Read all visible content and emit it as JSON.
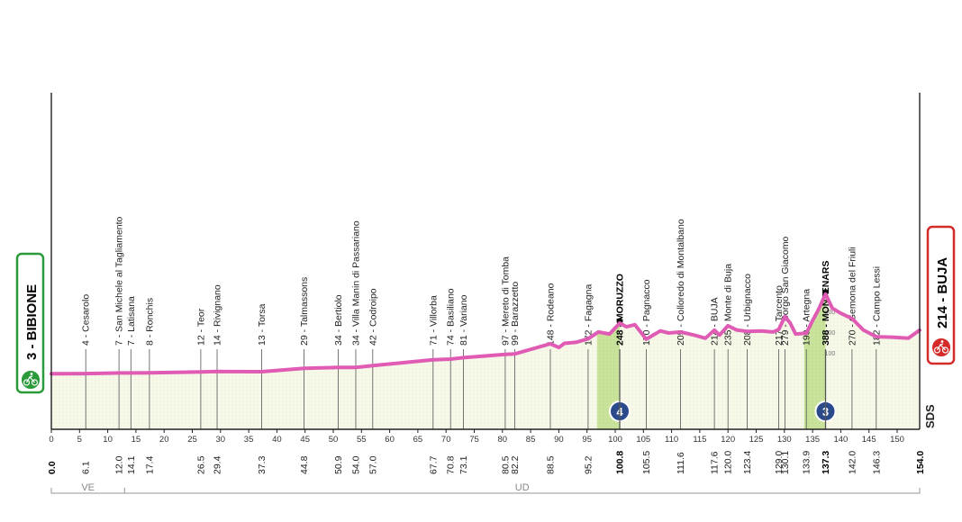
{
  "chart_data": {
    "type": "area",
    "title": "",
    "xlabel": "",
    "ylabel": "",
    "xlim": [
      0,
      154
    ],
    "x_ticks": [
      0,
      5,
      10,
      15,
      20,
      25,
      30,
      35,
      40,
      45,
      50,
      55,
      60,
      65,
      70,
      75,
      80,
      85,
      90,
      95,
      100,
      105,
      110,
      115,
      120,
      125,
      130,
      135,
      140,
      145,
      150
    ],
    "start": {
      "label": "3 - BIBIONE",
      "km": "0.0",
      "altitude_m": 3
    },
    "finish": {
      "label": "214 - BUJA",
      "km": "154.0",
      "altitude_m": 214
    },
    "profile": [
      {
        "km": 0,
        "alt": 3
      },
      {
        "km": 6.1,
        "alt": 4
      },
      {
        "km": 12.0,
        "alt": 7
      },
      {
        "km": 14.1,
        "alt": 7
      },
      {
        "km": 17.4,
        "alt": 8
      },
      {
        "km": 26.5,
        "alt": 12
      },
      {
        "km": 29.4,
        "alt": 14
      },
      {
        "km": 37.3,
        "alt": 13
      },
      {
        "km": 44.8,
        "alt": 29
      },
      {
        "km": 50.9,
        "alt": 34
      },
      {
        "km": 54.0,
        "alt": 34
      },
      {
        "km": 57.0,
        "alt": 42
      },
      {
        "km": 67.7,
        "alt": 71
      },
      {
        "km": 70.8,
        "alt": 74
      },
      {
        "km": 73.1,
        "alt": 81
      },
      {
        "km": 80.5,
        "alt": 97
      },
      {
        "km": 82.2,
        "alt": 99
      },
      {
        "km": 88.5,
        "alt": 148
      },
      {
        "km": 90,
        "alt": 130
      },
      {
        "km": 91,
        "alt": 150
      },
      {
        "km": 93,
        "alt": 155
      },
      {
        "km": 95.2,
        "alt": 172
      },
      {
        "km": 97,
        "alt": 205
      },
      {
        "km": 99,
        "alt": 195
      },
      {
        "km": 100.8,
        "alt": 248
      },
      {
        "km": 102,
        "alt": 230
      },
      {
        "km": 103.5,
        "alt": 240
      },
      {
        "km": 105.5,
        "alt": 170
      },
      {
        "km": 108,
        "alt": 210
      },
      {
        "km": 109.5,
        "alt": 200
      },
      {
        "km": 111.6,
        "alt": 205
      },
      {
        "km": 114,
        "alt": 190
      },
      {
        "km": 116,
        "alt": 175
      },
      {
        "km": 117.6,
        "alt": 214
      },
      {
        "km": 118.5,
        "alt": 190
      },
      {
        "km": 120.0,
        "alt": 235
      },
      {
        "km": 121.5,
        "alt": 215
      },
      {
        "km": 123.4,
        "alt": 208
      },
      {
        "km": 126,
        "alt": 210
      },
      {
        "km": 128,
        "alt": 205
      },
      {
        "km": 129.0,
        "alt": 217
      },
      {
        "km": 130.1,
        "alt": 279
      },
      {
        "km": 131,
        "alt": 250
      },
      {
        "km": 132,
        "alt": 195
      },
      {
        "km": 133.9,
        "alt": 199
      },
      {
        "km": 135,
        "alt": 260
      },
      {
        "km": 136,
        "alt": 310
      },
      {
        "km": 137.3,
        "alt": 388
      },
      {
        "km": 138.5,
        "alt": 320
      },
      {
        "km": 140,
        "alt": 295
      },
      {
        "km": 142.0,
        "alt": 270
      },
      {
        "km": 144,
        "alt": 215
      },
      {
        "km": 146.3,
        "alt": 182
      },
      {
        "km": 149,
        "alt": 180
      },
      {
        "km": 152,
        "alt": 175
      },
      {
        "km": 154.0,
        "alt": 214
      }
    ],
    "waypoints": [
      {
        "km": 6.1,
        "km_label": "6.1",
        "label": "4 - Cesarolo"
      },
      {
        "km": 12.0,
        "km_label": "12.0",
        "label": "7 - San Michele al Tagliamento"
      },
      {
        "km": 14.1,
        "km_label": "14.1",
        "label": "7 - Latisana"
      },
      {
        "km": 17.4,
        "km_label": "17.4",
        "label": "8 - Ronchis"
      },
      {
        "km": 26.5,
        "km_label": "26.5",
        "label": "12 - Teor"
      },
      {
        "km": 29.4,
        "km_label": "29.4",
        "label": "14 - Rivignano"
      },
      {
        "km": 37.3,
        "km_label": "37.3",
        "label": "13 - Torsa"
      },
      {
        "km": 44.8,
        "km_label": "44.8",
        "label": "29 - Talmassons"
      },
      {
        "km": 50.9,
        "km_label": "50.9",
        "label": "34 - Bertiolo"
      },
      {
        "km": 54.0,
        "km_label": "54.0",
        "label": "34 - Villa Manin di Passariano"
      },
      {
        "km": 57.0,
        "km_label": "57.0",
        "label": "42 - Codroipo"
      },
      {
        "km": 67.7,
        "km_label": "67.7",
        "label": "71 - Villorba"
      },
      {
        "km": 70.8,
        "km_label": "70.8",
        "label": "74 - Basiliano"
      },
      {
        "km": 73.1,
        "km_label": "73.1",
        "label": "81 - Variano"
      },
      {
        "km": 80.5,
        "km_label": "80.5",
        "label": "97 - Mereto di Tomba"
      },
      {
        "km": 82.2,
        "km_label": "82.2",
        "label": "99 - Barazzetto"
      },
      {
        "km": 88.5,
        "km_label": "88.5",
        "label": "148 - Rodeano"
      },
      {
        "km": 95.2,
        "km_label": "95.2",
        "label": "172 - Fagagna"
      },
      {
        "km": 100.8,
        "km_label": "100.8",
        "label": "248 - MORUZZO",
        "climb": true
      },
      {
        "km": 105.5,
        "km_label": "105.5",
        "label": "170 - Pagnacco"
      },
      {
        "km": 111.6,
        "km_label": "111.6",
        "label": "205 - Colloredo di Montalbano"
      },
      {
        "km": 117.6,
        "km_label": "117.6",
        "label": "214 - BUJA"
      },
      {
        "km": 120.0,
        "km_label": "120.0",
        "label": "235 - Monte di Buja"
      },
      {
        "km": 123.4,
        "km_label": "123.4",
        "label": "208 - Urbignacco"
      },
      {
        "km": 129.0,
        "km_label": "129.0",
        "label": "217 - Tarcento"
      },
      {
        "km": 130.1,
        "km_label": "130.1",
        "label": "279 - Borgo San Giacomo"
      },
      {
        "km": 133.9,
        "km_label": "133.9",
        "label": "199 - Artegna"
      },
      {
        "km": 137.3,
        "km_label": "137.3",
        "label": "388 - MONTENARS",
        "climb": true
      },
      {
        "km": 142.0,
        "km_label": "142.0",
        "label": "270 - Gemona del Friuli"
      },
      {
        "km": 146.3,
        "km_label": "146.3",
        "label": "182 - Campo Lessi"
      }
    ],
    "climbs": [
      {
        "name": "MORUZZO",
        "km_start": 96.8,
        "km_end": 100.8,
        "category": "4"
      },
      {
        "name": "MONTENARS",
        "km_start": 133.5,
        "km_end": 137.3,
        "category": "3"
      }
    ],
    "altitude_scale": [
      "300",
      "200",
      "100"
    ],
    "regions": [
      {
        "label": "VE",
        "km_start": 0,
        "km_end": 13
      },
      {
        "label": "UD",
        "km_start": 13,
        "km_end": 154
      }
    ],
    "logo_text": "SDS",
    "colors": {
      "profile_line": "#e05bb4",
      "profile_fill": "#f5f7e4",
      "climb_fill": "#c7e29a",
      "start_border": "#2a9a3a",
      "finish_border": "#d42a2a",
      "climb_badge": "#2b4a8c"
    }
  }
}
